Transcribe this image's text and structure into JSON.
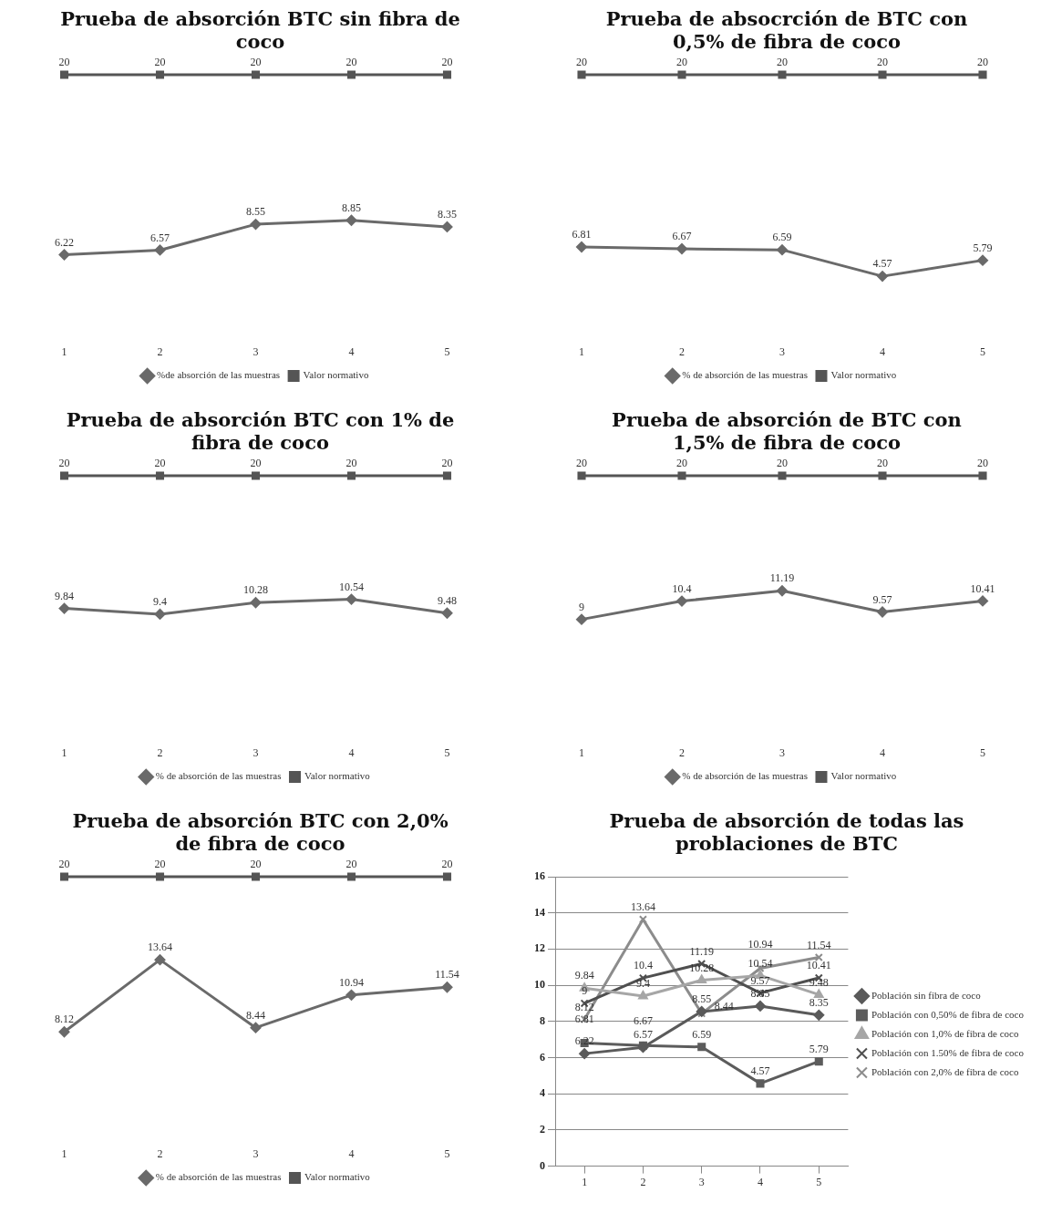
{
  "chart_data": [
    {
      "type": "line",
      "title": "Prueba de absorción BTC sin fibra de coco",
      "categories": [
        "1",
        "2",
        "3",
        "4",
        "5"
      ],
      "series": [
        {
          "name": "%de absorción de las muestras",
          "color": "#6a6a6a",
          "marker": "diamond",
          "values": [
            6.22,
            6.57,
            8.55,
            8.85,
            8.35
          ]
        },
        {
          "name": "Valor normativo",
          "color": "#555555",
          "marker": "square",
          "values": [
            20,
            20,
            20,
            20,
            20
          ]
        }
      ],
      "data_labels": true,
      "legend": "bottom",
      "tick_labels": "x"
    },
    {
      "type": "line",
      "title": "Prueba de absocrción de BTC con 0,5% de fibra de coco",
      "categories": [
        "1",
        "2",
        "3",
        "4",
        "5"
      ],
      "series": [
        {
          "name": "% de absorción de las muestras",
          "color": "#6a6a6a",
          "marker": "diamond",
          "values": [
            6.81,
            6.67,
            6.59,
            4.57,
            5.79
          ]
        },
        {
          "name": "Valor normativo",
          "color": "#555555",
          "marker": "square",
          "values": [
            20,
            20,
            20,
            20,
            20
          ]
        }
      ],
      "data_labels": true,
      "legend": "bottom",
      "tick_labels": "x"
    },
    {
      "type": "line",
      "title": "Prueba de absorción BTC con 1% de fibra de coco",
      "categories": [
        "1",
        "2",
        "3",
        "4",
        "5"
      ],
      "series": [
        {
          "name": "% de absorción de las muestras",
          "color": "#6a6a6a",
          "marker": "diamond",
          "values": [
            9.84,
            9.4,
            10.28,
            10.54,
            9.48
          ]
        },
        {
          "name": "Valor normativo",
          "color": "#555555",
          "marker": "square",
          "values": [
            20,
            20,
            20,
            20,
            20
          ]
        }
      ],
      "data_labels": true,
      "legend": "bottom",
      "tick_labels": "x"
    },
    {
      "type": "line",
      "title": "Prueba de absorción de BTC con 1,5% de fibra de coco",
      "categories": [
        "1",
        "2",
        "3",
        "4",
        "5"
      ],
      "series": [
        {
          "name": "% de absorción de las muestras",
          "color": "#6a6a6a",
          "marker": "diamond",
          "values": [
            9,
            10.4,
            11.19,
            9.57,
            10.41
          ]
        },
        {
          "name": "Valor normativo",
          "color": "#555555",
          "marker": "square",
          "values": [
            20,
            20,
            20,
            20,
            20
          ]
        }
      ],
      "data_labels": true,
      "legend": "bottom",
      "tick_labels": "x"
    },
    {
      "type": "line",
      "title": "Prueba de absorción BTC con 2,0% de fibra de coco",
      "categories": [
        "1",
        "2",
        "3",
        "4",
        "5"
      ],
      "series": [
        {
          "name": "% de absorción de las muestras",
          "color": "#6a6a6a",
          "marker": "diamond",
          "values": [
            8.12,
            13.64,
            8.44,
            10.94,
            11.54
          ]
        },
        {
          "name": "Valor normativo",
          "color": "#555555",
          "marker": "square",
          "values": [
            20,
            20,
            20,
            20,
            20
          ]
        }
      ],
      "data_labels": true,
      "legend": "bottom",
      "tick_labels": "x"
    },
    {
      "type": "line",
      "title": "Prueba de absorción de todas las problaciones de BTC",
      "categories": [
        "1",
        "2",
        "3",
        "4",
        "5"
      ],
      "series": [
        {
          "name": "Población sin fibra de coco",
          "color": "#5a5a5a",
          "marker": "diamond",
          "values": [
            6.22,
            6.57,
            8.55,
            8.85,
            8.35
          ]
        },
        {
          "name": "Población con 0,50% de fibra de coco",
          "color": "#5c5c5c",
          "marker": "square",
          "values": [
            6.81,
            6.67,
            6.59,
            4.57,
            5.79
          ]
        },
        {
          "name": "Población con 1,0% de fibra de coco",
          "color": "#a6a6a6",
          "marker": "triangle",
          "values": [
            9.84,
            9.4,
            10.28,
            10.54,
            9.48
          ]
        },
        {
          "name": "Población con 1.50% de fibra de coco",
          "color": "#4f4f4f",
          "marker": "cross",
          "values": [
            9,
            10.4,
            11.19,
            9.57,
            10.41
          ]
        },
        {
          "name": "Población con 2,0% de fibra de coco",
          "color": "#8c8c8c",
          "marker": "cross",
          "values": [
            8.12,
            13.64,
            8.44,
            10.94,
            11.54
          ]
        }
      ],
      "data_labels": true,
      "legend": "right",
      "ylim": [
        0,
        16
      ],
      "yticks": [
        0,
        2,
        4,
        6,
        8,
        10,
        12,
        14,
        16
      ],
      "grid": "y"
    }
  ]
}
